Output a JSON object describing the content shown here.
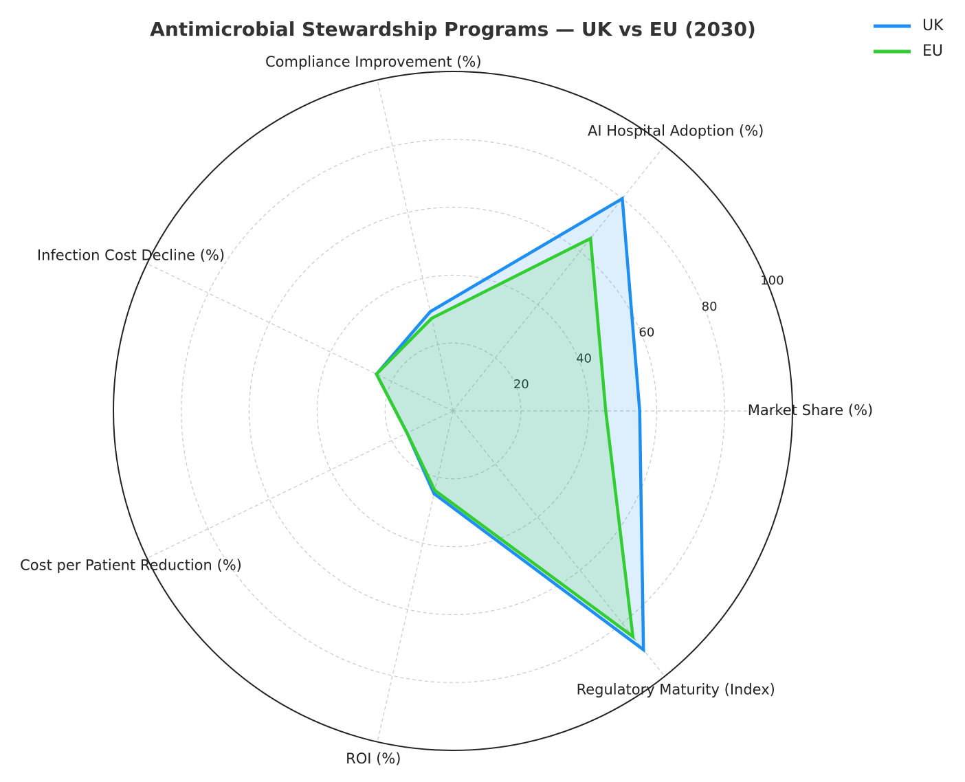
{
  "chart_data": {
    "type": "radar",
    "title": "Antimicrobial Stewardship Programs — UK vs EU (2030)",
    "categories": [
      "Market Share (%)",
      "AI Hospital Adoption (%)",
      "Compliance Improvement (%)",
      "Infection Cost Decline (%)",
      "Cost per Patient Reduction (%)",
      "ROI (%)",
      "Regulatory Maturity (Index)"
    ],
    "series": [
      {
        "name": "UK",
        "color": "#1e8ff0",
        "values": [
          55,
          80,
          30,
          25,
          15,
          25,
          90
        ]
      },
      {
        "name": "EU",
        "color": "#32cd32",
        "values": [
          45,
          65,
          28,
          25,
          15,
          24,
          85
        ]
      }
    ],
    "ylim": [
      0,
      100
    ],
    "yticks": [
      20,
      40,
      60,
      80,
      100
    ],
    "grid": true,
    "legend": "upper right"
  }
}
